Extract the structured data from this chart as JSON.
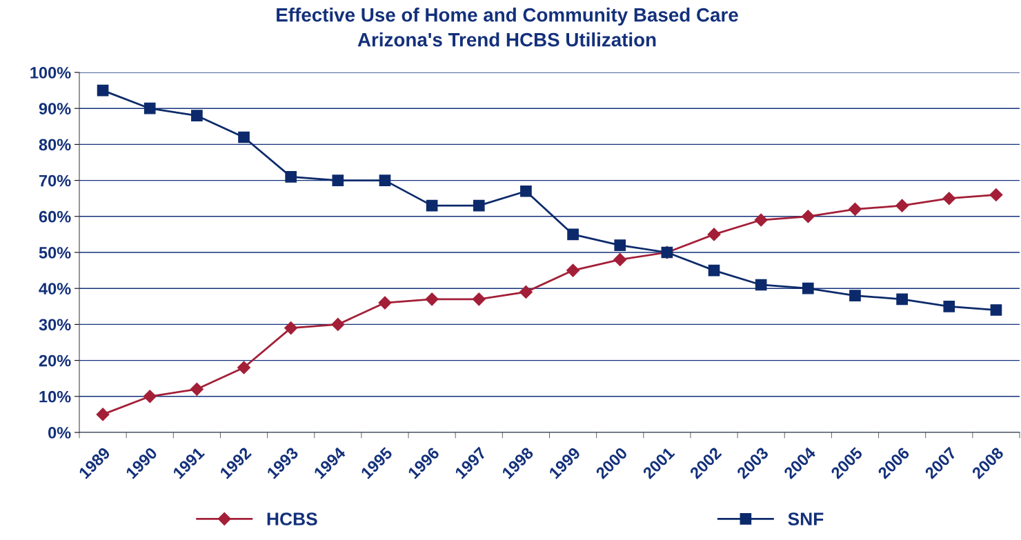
{
  "chart_data": {
    "type": "line",
    "title": "Effective Use of Home and Community Based Care\nArizona's Trend HCBS Utilization",
    "categories": [
      "1989",
      "1990",
      "1991",
      "1992",
      "1993",
      "1994",
      "1995",
      "1996",
      "1997",
      "1998",
      "1999",
      "2000",
      "2001",
      "2002",
      "2003",
      "2004",
      "2005",
      "2006",
      "2007",
      "2008"
    ],
    "series": [
      {
        "name": "HCBS",
        "color": "#a31f37",
        "marker": "diamond",
        "values": [
          5,
          10,
          12,
          18,
          29,
          30,
          36,
          37,
          37,
          39,
          45,
          48,
          50,
          55,
          59,
          60,
          62,
          63,
          65,
          66
        ]
      },
      {
        "name": "SNF",
        "color": "#0c2a6b",
        "marker": "square",
        "values": [
          95,
          90,
          88,
          82,
          71,
          70,
          70,
          63,
          63,
          67,
          55,
          52,
          50,
          45,
          41,
          40,
          38,
          37,
          35,
          34
        ]
      }
    ],
    "ylim": [
      0,
      100
    ],
    "yticks": [
      {
        "value": 0,
        "label": "0%"
      },
      {
        "value": 10,
        "label": "10%"
      },
      {
        "value": 20,
        "label": "20%"
      },
      {
        "value": 30,
        "label": "30%"
      },
      {
        "value": 40,
        "label": "40%"
      },
      {
        "value": 50,
        "label": "50%"
      },
      {
        "value": 60,
        "label": "60%"
      },
      {
        "value": 70,
        "label": "70%"
      },
      {
        "value": 80,
        "label": "80%"
      },
      {
        "value": 90,
        "label": "90%"
      },
      {
        "value": 100,
        "label": "100%"
      }
    ],
    "grid": "y",
    "legend": "bottom",
    "line_style": "solid"
  }
}
